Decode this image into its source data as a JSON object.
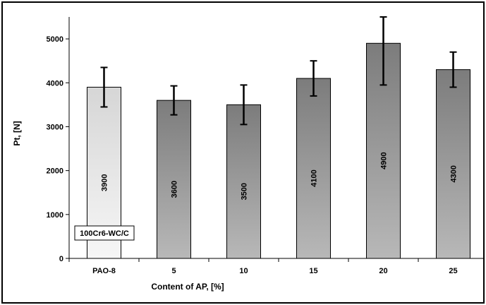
{
  "chart_data": {
    "type": "bar",
    "title": "",
    "xlabel": "Content of AP, [%]",
    "ylabel": "Pt, [N]",
    "ylim": [
      0,
      5500
    ],
    "yticks": [
      0,
      1000,
      2000,
      3000,
      4000,
      5000
    ],
    "categories": [
      "PAO-8",
      "5",
      "10",
      "15",
      "20",
      "25"
    ],
    "values": [
      3900,
      3600,
      3500,
      4100,
      4900,
      4300
    ],
    "error_low": [
      3450,
      3270,
      3050,
      3700,
      3950,
      3900
    ],
    "error_high": [
      4350,
      3930,
      3950,
      4500,
      5500,
      4700
    ],
    "data_labels": [
      "3900",
      "3600",
      "3500",
      "4100",
      "4900",
      "4300"
    ],
    "legend_label": "100Cr6-WC/C",
    "grid": false,
    "colors": {
      "reference_bar": "#e8e8e8",
      "bar_top": "#7c7c7c",
      "bar_bottom": "#b8b8b8",
      "plot_bg": "#ffffff"
    }
  }
}
